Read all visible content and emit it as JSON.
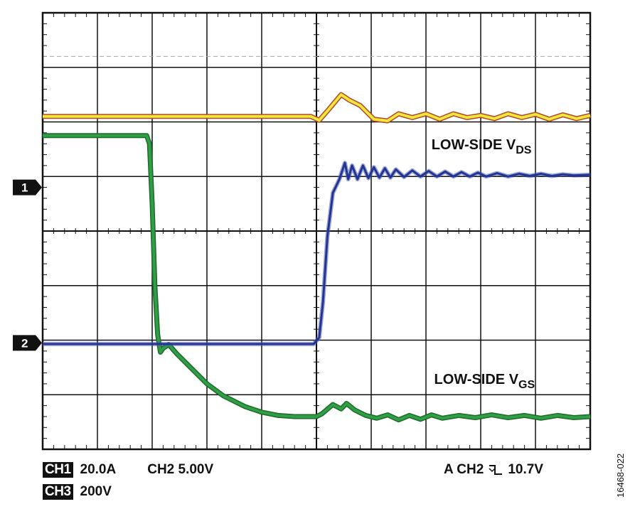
{
  "chart_data": {
    "type": "line",
    "title": "",
    "xlabel": "",
    "ylabel": "",
    "grid": true,
    "x_divisions": 10,
    "y_divisions": 8,
    "xlim": [
      0,
      10
    ],
    "ylim": [
      0,
      8
    ],
    "colors": {
      "ch1": "#f0e63c",
      "ch2": "#2f9e44",
      "ch3": "#24358f",
      "ch3_outline": "#b04a2a",
      "grid": "#111111",
      "reference": "#aaaaaa"
    },
    "markers": [
      {
        "label": "1",
        "level_div": 4.8
      },
      {
        "label": "2",
        "level_div": 1.95
      }
    ],
    "reference_level_div": 7.2,
    "annotations": [
      {
        "text": "LOW-SIDE V",
        "sub": "DS",
        "x_div": 7.1,
        "y_div": 5.5
      },
      {
        "text": "LOW-SIDE V",
        "sub": "GS",
        "x_div": 7.15,
        "y_div": 1.2
      }
    ],
    "series": [
      {
        "name": "CH1",
        "color_key": "ch1",
        "points": [
          [
            0,
            6.1
          ],
          [
            4.9,
            6.1
          ],
          [
            5.05,
            6.03
          ],
          [
            5.2,
            6.2
          ],
          [
            5.45,
            6.5
          ],
          [
            5.6,
            6.4
          ],
          [
            5.8,
            6.3
          ],
          [
            6.05,
            6.05
          ],
          [
            6.3,
            6.02
          ],
          [
            6.5,
            6.15
          ],
          [
            6.75,
            6.08
          ],
          [
            7.0,
            6.15
          ],
          [
            7.25,
            6.05
          ],
          [
            7.5,
            6.15
          ],
          [
            7.75,
            6.08
          ],
          [
            8.0,
            6.12
          ],
          [
            8.25,
            6.06
          ],
          [
            8.5,
            6.15
          ],
          [
            8.75,
            6.08
          ],
          [
            9.0,
            6.14
          ],
          [
            9.25,
            6.05
          ],
          [
            9.5,
            6.13
          ],
          [
            9.75,
            6.06
          ],
          [
            10.0,
            6.12
          ]
        ]
      },
      {
        "name": "CH2",
        "color_key": "ch2",
        "points": [
          [
            0,
            5.75
          ],
          [
            1.9,
            5.75
          ],
          [
            1.95,
            5.6
          ],
          [
            2.0,
            4.5
          ],
          [
            2.05,
            3.0
          ],
          [
            2.1,
            2.1
          ],
          [
            2.15,
            1.78
          ],
          [
            2.2,
            1.85
          ],
          [
            2.3,
            1.92
          ],
          [
            2.45,
            1.75
          ],
          [
            2.7,
            1.5
          ],
          [
            3.0,
            1.2
          ],
          [
            3.3,
            0.98
          ],
          [
            3.7,
            0.78
          ],
          [
            4.0,
            0.68
          ],
          [
            4.3,
            0.62
          ],
          [
            4.6,
            0.6
          ],
          [
            5.0,
            0.6
          ],
          [
            5.1,
            0.65
          ],
          [
            5.3,
            0.82
          ],
          [
            5.45,
            0.74
          ],
          [
            5.55,
            0.84
          ],
          [
            5.7,
            0.72
          ],
          [
            5.9,
            0.62
          ],
          [
            6.1,
            0.57
          ],
          [
            6.3,
            0.63
          ],
          [
            6.5,
            0.54
          ],
          [
            6.7,
            0.62
          ],
          [
            6.9,
            0.55
          ],
          [
            7.1,
            0.63
          ],
          [
            7.3,
            0.57
          ],
          [
            7.6,
            0.62
          ],
          [
            7.9,
            0.58
          ],
          [
            8.2,
            0.63
          ],
          [
            8.5,
            0.58
          ],
          [
            8.8,
            0.62
          ],
          [
            9.1,
            0.57
          ],
          [
            9.4,
            0.62
          ],
          [
            9.7,
            0.58
          ],
          [
            10.0,
            0.6
          ]
        ]
      },
      {
        "name": "CH3",
        "color_key": "ch3",
        "points": [
          [
            0,
            1.93
          ],
          [
            4.95,
            1.93
          ],
          [
            5.05,
            2.05
          ],
          [
            5.12,
            2.7
          ],
          [
            5.2,
            3.9
          ],
          [
            5.3,
            4.7
          ],
          [
            5.42,
            4.95
          ],
          [
            5.52,
            5.25
          ],
          [
            5.58,
            4.95
          ],
          [
            5.65,
            5.2
          ],
          [
            5.75,
            4.95
          ],
          [
            5.85,
            5.2
          ],
          [
            5.95,
            4.97
          ],
          [
            6.05,
            5.17
          ],
          [
            6.15,
            4.98
          ],
          [
            6.25,
            5.15
          ],
          [
            6.35,
            4.98
          ],
          [
            6.45,
            5.13
          ],
          [
            6.6,
            4.99
          ],
          [
            6.75,
            5.11
          ],
          [
            6.9,
            5.0
          ],
          [
            7.05,
            5.1
          ],
          [
            7.2,
            5.0
          ],
          [
            7.35,
            5.09
          ],
          [
            7.5,
            5.0
          ],
          [
            7.65,
            5.08
          ],
          [
            7.8,
            5.0
          ],
          [
            7.95,
            5.07
          ],
          [
            8.1,
            5.0
          ],
          [
            8.3,
            5.06
          ],
          [
            8.5,
            5.0
          ],
          [
            8.7,
            5.05
          ],
          [
            8.9,
            5.01
          ],
          [
            9.1,
            5.05
          ],
          [
            9.3,
            5.01
          ],
          [
            9.5,
            5.04
          ],
          [
            9.7,
            5.02
          ],
          [
            10.0,
            5.03
          ]
        ]
      }
    ]
  },
  "scale": {
    "ch1_label": "CH1",
    "ch1_value": "20.0A",
    "ch2_text": "CH2 5.00V",
    "ch3_label": "CH3",
    "ch3_value": "200V"
  },
  "trigger": {
    "source": "A  CH2",
    "icon": "falling-edge-icon",
    "level": "10.7V"
  },
  "figure_id": "16468-022"
}
